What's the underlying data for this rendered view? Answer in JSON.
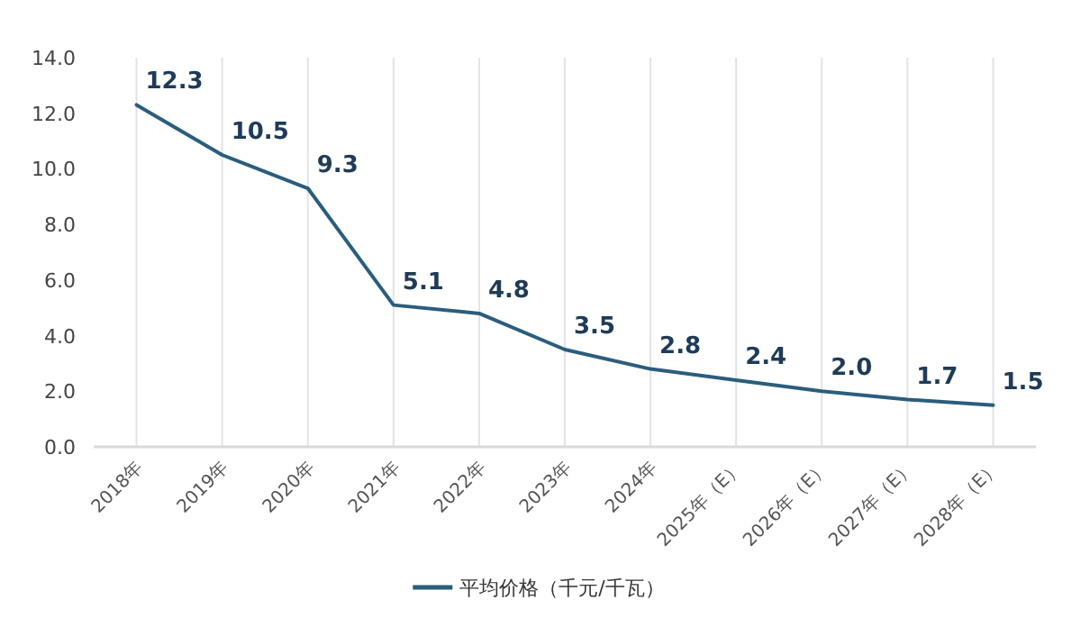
{
  "chart_data": {
    "type": "line",
    "categories": [
      "2018年",
      "2019年",
      "2020年",
      "2021年",
      "2022年",
      "2023年",
      "2024年",
      "2025年（E）",
      "2026年（E）",
      "2027年（E）",
      "2028年（E）"
    ],
    "series": [
      {
        "name": "平均价格（千元/千瓦）",
        "color": "#2b5d7c",
        "values": [
          12.3,
          10.5,
          9.3,
          5.1,
          4.8,
          3.5,
          2.8,
          2.4,
          2.0,
          1.7,
          1.5
        ],
        "value_labels": [
          "12.3",
          "10.5",
          "9.3",
          "5.1",
          "4.8",
          "3.5",
          "2.8",
          "2.4",
          "2.0",
          "1.7",
          "1.5"
        ]
      }
    ],
    "ylim": [
      0,
      14
    ],
    "yticks": [
      {
        "value": 0,
        "label": "0.0"
      },
      {
        "value": 2,
        "label": "2.0"
      },
      {
        "value": 4,
        "label": "4.0"
      },
      {
        "value": 6,
        "label": "6.0"
      },
      {
        "value": 8,
        "label": "8.0"
      },
      {
        "value": 10,
        "label": "10.0"
      },
      {
        "value": 12,
        "label": "12.0"
      },
      {
        "value": 14,
        "label": "14.0"
      }
    ],
    "grid": "x",
    "legend": "bottom",
    "marker": "none"
  }
}
